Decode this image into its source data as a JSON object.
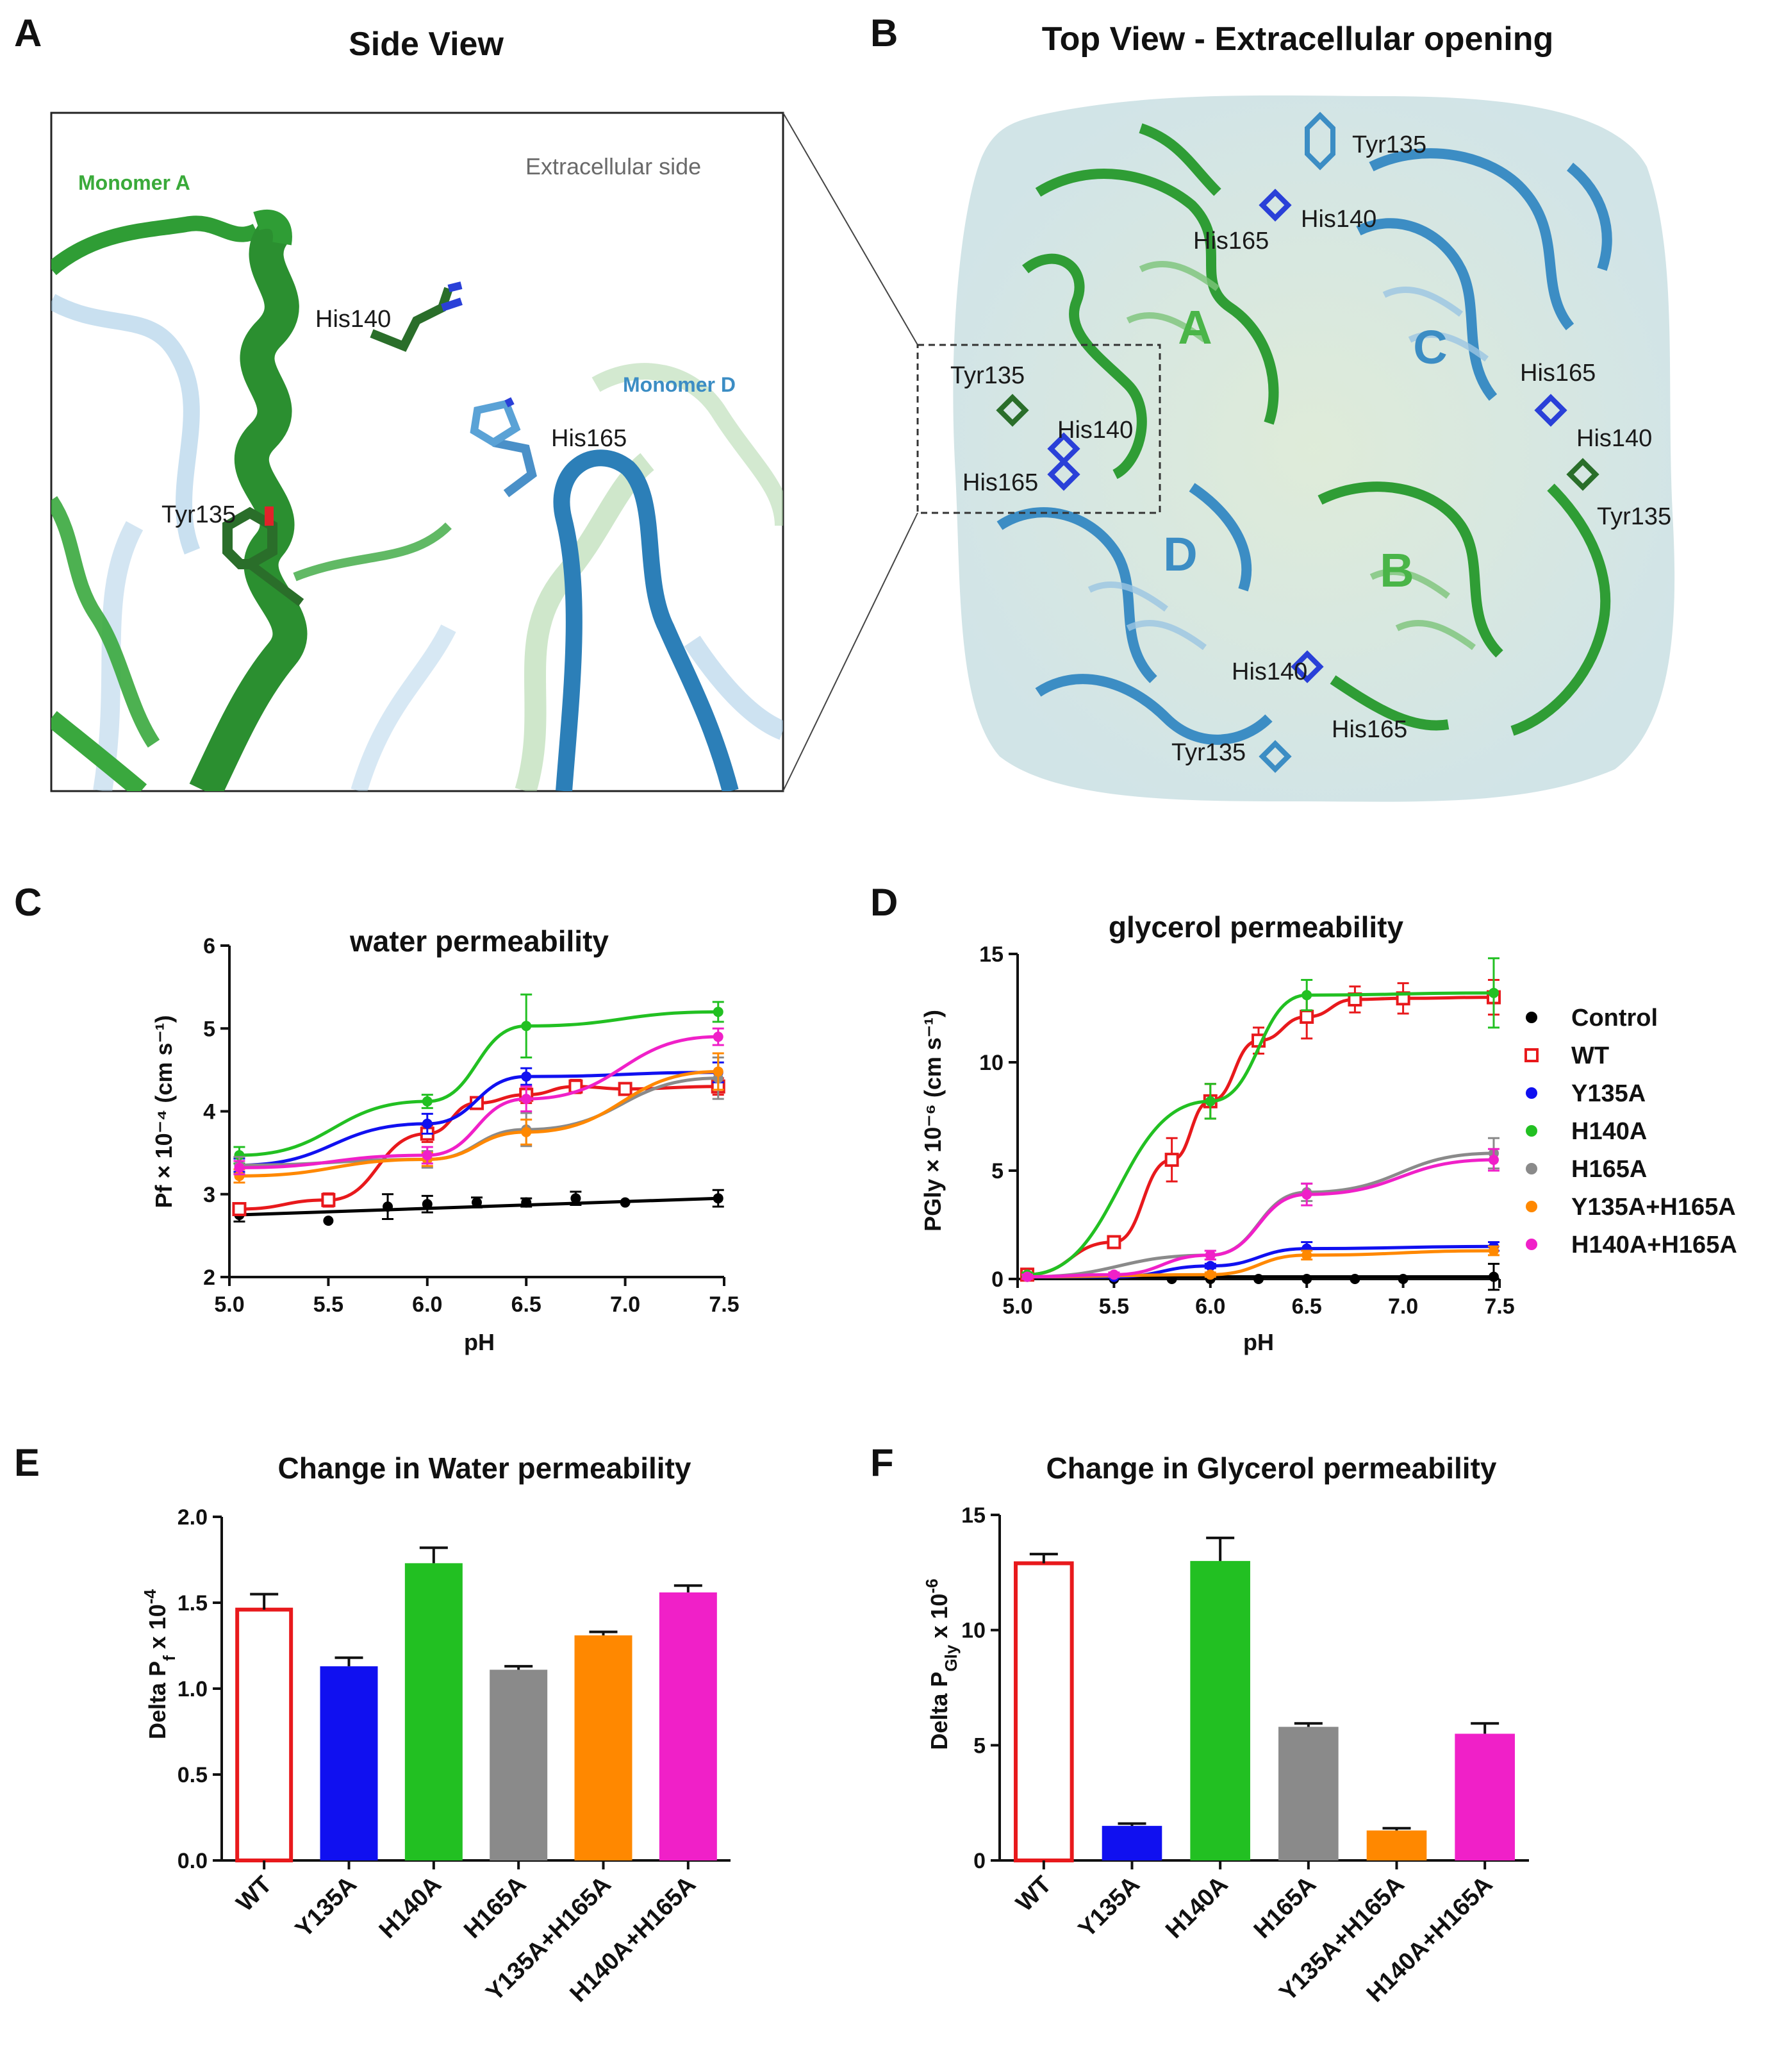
{
  "panel_letters": {
    "a": "A",
    "b": "B",
    "c": "C",
    "d": "D",
    "e": "E",
    "f": "F"
  },
  "panel_a": {
    "title": "Side View",
    "labels": {
      "monomer_a": "Monomer A",
      "monomer_d": "Monomer D",
      "extracellular": "Extracellular side",
      "his140": "His140",
      "his165": "His165",
      "tyr135": "Tyr135"
    }
  },
  "panel_b": {
    "title": "Top View - Extracellular opening",
    "subunits": {
      "a": "A",
      "b": "B",
      "c": "C",
      "d": "D"
    },
    "residues": {
      "tyr135": "Tyr135",
      "his140": "His140",
      "his165": "His165"
    }
  },
  "colors": {
    "green": "#2e9e2e",
    "blue": "#3c8dc4",
    "control": "#000000",
    "wt": "#e8191c",
    "y135a": "#1010f0",
    "h140a": "#22c022",
    "h165a": "#8a8a8a",
    "y135a_h165a": "#ff8800",
    "h140a_h165a": "#f020c8"
  },
  "legend": [
    "Control",
    "WT",
    "Y135A",
    "H140A",
    "H165A",
    "Y135A+H165A",
    "H140A+H165A"
  ],
  "chart_data": [
    {
      "id": "C",
      "type": "line",
      "title": "water permeability",
      "xlabel": "pH",
      "ylabel": "Pf × 10⁻⁴ (cm s⁻¹)",
      "xlim": [
        5.0,
        7.5
      ],
      "ylim": [
        2,
        6
      ],
      "xticks": [
        "5.0",
        "5.5",
        "6.0",
        "6.5",
        "7.0",
        "7.5"
      ],
      "yticks": [
        "2",
        "3",
        "4",
        "5",
        "6"
      ],
      "x": [
        5.05,
        5.5,
        5.8,
        6.0,
        6.25,
        6.5,
        6.75,
        7.0,
        7.47
      ],
      "series": [
        {
          "name": "Control",
          "values": [
            2.75,
            2.68,
            2.85,
            2.88,
            2.9,
            2.9,
            2.95,
            2.9,
            2.95
          ],
          "err": [
            0.08,
            0,
            0.15,
            0.1,
            0.06,
            0.05,
            0.08,
            0,
            0.1
          ]
        },
        {
          "name": "WT",
          "values": [
            2.82,
            2.93,
            null,
            3.73,
            4.1,
            4.2,
            4.3,
            4.27,
            4.3
          ],
          "err": [
            0.06,
            0.08,
            0,
            0.1,
            0.05,
            0.1,
            0.08,
            0.05,
            0.1
          ]
        },
        {
          "name": "Y135A",
          "values": [
            3.35,
            null,
            null,
            3.85,
            null,
            4.42,
            null,
            null,
            4.47
          ],
          "err": [
            0.08,
            0,
            0,
            0.12,
            0,
            0.1,
            0,
            0,
            0.12
          ]
        },
        {
          "name": "H140A",
          "values": [
            3.47,
            null,
            null,
            4.12,
            null,
            5.03,
            null,
            null,
            5.2
          ],
          "err": [
            0.1,
            0,
            0,
            0.08,
            0,
            0.38,
            0,
            0,
            0.12
          ]
        },
        {
          "name": "H165A",
          "values": [
            3.35,
            null,
            null,
            3.42,
            null,
            3.78,
            null,
            null,
            4.4
          ],
          "err": [
            0.1,
            0,
            0,
            0.1,
            0,
            0.2,
            0,
            0,
            0.25
          ]
        },
        {
          "name": "Y135A+H165A",
          "values": [
            3.22,
            null,
            null,
            3.42,
            null,
            3.75,
            null,
            null,
            4.48
          ],
          "err": [
            0.08,
            0,
            0,
            0.08,
            0,
            0.15,
            0,
            0,
            0.22
          ]
        },
        {
          "name": "H140A+H165A",
          "values": [
            3.32,
            null,
            null,
            3.47,
            null,
            4.15,
            null,
            null,
            4.9
          ],
          "err": [
            0.08,
            0,
            0,
            0.1,
            0,
            0.15,
            0,
            0,
            0.1
          ]
        }
      ]
    },
    {
      "id": "D",
      "type": "line",
      "title": "glycerol permeability",
      "xlabel": "pH",
      "ylabel": "PGly × 10⁻⁶ (cm s⁻¹)",
      "xlim": [
        5.0,
        7.5
      ],
      "ylim": [
        0,
        15
      ],
      "xticks": [
        "5.0",
        "5.5",
        "6.0",
        "6.5",
        "7.0",
        "7.5"
      ],
      "yticks": [
        "0",
        "5",
        "10",
        "15"
      ],
      "x": [
        5.05,
        5.5,
        5.8,
        6.0,
        6.25,
        6.5,
        6.75,
        7.0,
        7.47
      ],
      "series": [
        {
          "name": "Control",
          "values": [
            0.1,
            0.0,
            0.0,
            0.0,
            0.0,
            0.0,
            0.0,
            0.0,
            0.1
          ],
          "err": [
            0.1,
            0,
            0,
            0,
            0,
            0,
            0,
            0,
            0.6
          ]
        },
        {
          "name": "WT",
          "values": [
            0.2,
            1.7,
            5.5,
            8.2,
            11.0,
            12.1,
            12.9,
            12.95,
            13.0
          ],
          "err": [
            0.1,
            0.1,
            1.0,
            0.8,
            0.6,
            1.0,
            0.6,
            0.7,
            0.8
          ]
        },
        {
          "name": "Y135A",
          "values": [
            0.1,
            0.1,
            null,
            0.6,
            null,
            1.4,
            null,
            null,
            1.5
          ],
          "err": [
            0.1,
            0,
            0,
            0.1,
            0,
            0.3,
            0,
            0,
            0.2
          ]
        },
        {
          "name": "H140A",
          "values": [
            0.2,
            null,
            null,
            8.2,
            null,
            13.1,
            null,
            null,
            13.2
          ],
          "err": [
            0.1,
            0,
            0,
            0.8,
            0,
            0.7,
            0,
            0,
            1.6
          ]
        },
        {
          "name": "H165A",
          "values": [
            0.1,
            null,
            null,
            1.1,
            null,
            4.0,
            null,
            null,
            5.8
          ],
          "err": [
            0.1,
            0,
            0,
            0.2,
            0,
            0.4,
            0,
            0,
            0.7
          ]
        },
        {
          "name": "Y135A+H165A",
          "values": [
            0.1,
            null,
            null,
            0.2,
            null,
            1.1,
            null,
            null,
            1.3
          ],
          "err": [
            0.1,
            0,
            0,
            0.1,
            0,
            0.2,
            0,
            0,
            0.2
          ]
        },
        {
          "name": "H140A+H165A",
          "values": [
            0.1,
            0.2,
            null,
            1.1,
            null,
            3.9,
            null,
            null,
            5.5
          ],
          "err": [
            0.1,
            0.1,
            0,
            0.2,
            0,
            0.5,
            0,
            0,
            0.5
          ]
        }
      ]
    },
    {
      "id": "E",
      "type": "bar",
      "title": "Change in Water permeability",
      "ylabel_main": "Delta P",
      "ylabel_sub": "f",
      "ylabel_tail": " x 10",
      "ylabel_sup": "-4",
      "ylim": [
        0,
        2.0
      ],
      "yticks": [
        "0.0",
        "0.5",
        "1.0",
        "1.5",
        "2.0"
      ],
      "categories": [
        "WT",
        "Y135A",
        "H140A",
        "H165A",
        "Y135A+H165A",
        "H140A+H165A"
      ],
      "values": [
        1.46,
        1.13,
        1.73,
        1.11,
        1.31,
        1.56
      ],
      "err": [
        0.09,
        0.05,
        0.09,
        0.02,
        0.02,
        0.04
      ]
    },
    {
      "id": "F",
      "type": "bar",
      "title": "Change in Glycerol permeability",
      "ylabel_main": "Delta P",
      "ylabel_sub": "Gly",
      "ylabel_tail": " x 10",
      "ylabel_sup": "-6",
      "ylim": [
        0,
        15
      ],
      "yticks": [
        "0",
        "5",
        "10",
        "15"
      ],
      "categories": [
        "WT",
        "Y135A",
        "H140A",
        "H165A",
        "Y135A+H165A",
        "H140A+H165A"
      ],
      "values": [
        12.9,
        1.5,
        13.0,
        5.8,
        1.3,
        5.5
      ],
      "err": [
        0.4,
        0.1,
        1.0,
        0.15,
        0.1,
        0.45
      ]
    }
  ]
}
